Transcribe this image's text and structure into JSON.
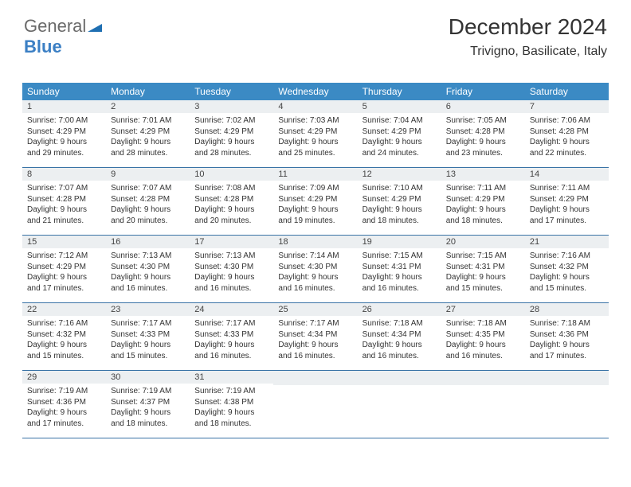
{
  "logo": {
    "part1": "General",
    "part2": "Blue"
  },
  "title": "December 2024",
  "location": "Trivigno, Basilicate, Italy",
  "day_names": [
    "Sunday",
    "Monday",
    "Tuesday",
    "Wednesday",
    "Thursday",
    "Friday",
    "Saturday"
  ],
  "colors": {
    "header_bg": "#3b8ac4",
    "header_text": "#ffffff",
    "date_bg": "#eceff1",
    "week_border": "#3973a6",
    "text": "#333333",
    "logo_gray": "#6a6a6a",
    "logo_blue": "#3b7fc4"
  },
  "weeks": [
    [
      {
        "n": "1",
        "sr": "7:00 AM",
        "ss": "4:29 PM",
        "dl": "9 hours and 29 minutes."
      },
      {
        "n": "2",
        "sr": "7:01 AM",
        "ss": "4:29 PM",
        "dl": "9 hours and 28 minutes."
      },
      {
        "n": "3",
        "sr": "7:02 AM",
        "ss": "4:29 PM",
        "dl": "9 hours and 28 minutes."
      },
      {
        "n": "4",
        "sr": "7:03 AM",
        "ss": "4:29 PM",
        "dl": "9 hours and 25 minutes."
      },
      {
        "n": "5",
        "sr": "7:04 AM",
        "ss": "4:29 PM",
        "dl": "9 hours and 24 minutes."
      },
      {
        "n": "6",
        "sr": "7:05 AM",
        "ss": "4:28 PM",
        "dl": "9 hours and 23 minutes."
      },
      {
        "n": "7",
        "sr": "7:06 AM",
        "ss": "4:28 PM",
        "dl": "9 hours and 22 minutes."
      }
    ],
    [
      {
        "n": "8",
        "sr": "7:07 AM",
        "ss": "4:28 PM",
        "dl": "9 hours and 21 minutes."
      },
      {
        "n": "9",
        "sr": "7:07 AM",
        "ss": "4:28 PM",
        "dl": "9 hours and 20 minutes."
      },
      {
        "n": "10",
        "sr": "7:08 AM",
        "ss": "4:28 PM",
        "dl": "9 hours and 20 minutes."
      },
      {
        "n": "11",
        "sr": "7:09 AM",
        "ss": "4:29 PM",
        "dl": "9 hours and 19 minutes."
      },
      {
        "n": "12",
        "sr": "7:10 AM",
        "ss": "4:29 PM",
        "dl": "9 hours and 18 minutes."
      },
      {
        "n": "13",
        "sr": "7:11 AM",
        "ss": "4:29 PM",
        "dl": "9 hours and 18 minutes."
      },
      {
        "n": "14",
        "sr": "7:11 AM",
        "ss": "4:29 PM",
        "dl": "9 hours and 17 minutes."
      }
    ],
    [
      {
        "n": "15",
        "sr": "7:12 AM",
        "ss": "4:29 PM",
        "dl": "9 hours and 17 minutes."
      },
      {
        "n": "16",
        "sr": "7:13 AM",
        "ss": "4:30 PM",
        "dl": "9 hours and 16 minutes."
      },
      {
        "n": "17",
        "sr": "7:13 AM",
        "ss": "4:30 PM",
        "dl": "9 hours and 16 minutes."
      },
      {
        "n": "18",
        "sr": "7:14 AM",
        "ss": "4:30 PM",
        "dl": "9 hours and 16 minutes."
      },
      {
        "n": "19",
        "sr": "7:15 AM",
        "ss": "4:31 PM",
        "dl": "9 hours and 16 minutes."
      },
      {
        "n": "20",
        "sr": "7:15 AM",
        "ss": "4:31 PM",
        "dl": "9 hours and 15 minutes."
      },
      {
        "n": "21",
        "sr": "7:16 AM",
        "ss": "4:32 PM",
        "dl": "9 hours and 15 minutes."
      }
    ],
    [
      {
        "n": "22",
        "sr": "7:16 AM",
        "ss": "4:32 PM",
        "dl": "9 hours and 15 minutes."
      },
      {
        "n": "23",
        "sr": "7:17 AM",
        "ss": "4:33 PM",
        "dl": "9 hours and 15 minutes."
      },
      {
        "n": "24",
        "sr": "7:17 AM",
        "ss": "4:33 PM",
        "dl": "9 hours and 16 minutes."
      },
      {
        "n": "25",
        "sr": "7:17 AM",
        "ss": "4:34 PM",
        "dl": "9 hours and 16 minutes."
      },
      {
        "n": "26",
        "sr": "7:18 AM",
        "ss": "4:34 PM",
        "dl": "9 hours and 16 minutes."
      },
      {
        "n": "27",
        "sr": "7:18 AM",
        "ss": "4:35 PM",
        "dl": "9 hours and 16 minutes."
      },
      {
        "n": "28",
        "sr": "7:18 AM",
        "ss": "4:36 PM",
        "dl": "9 hours and 17 minutes."
      }
    ],
    [
      {
        "n": "29",
        "sr": "7:19 AM",
        "ss": "4:36 PM",
        "dl": "9 hours and 17 minutes."
      },
      {
        "n": "30",
        "sr": "7:19 AM",
        "ss": "4:37 PM",
        "dl": "9 hours and 18 minutes."
      },
      {
        "n": "31",
        "sr": "7:19 AM",
        "ss": "4:38 PM",
        "dl": "9 hours and 18 minutes."
      },
      null,
      null,
      null,
      null
    ]
  ],
  "labels": {
    "sunrise": "Sunrise: ",
    "sunset": "Sunset: ",
    "daylight": "Daylight: "
  }
}
